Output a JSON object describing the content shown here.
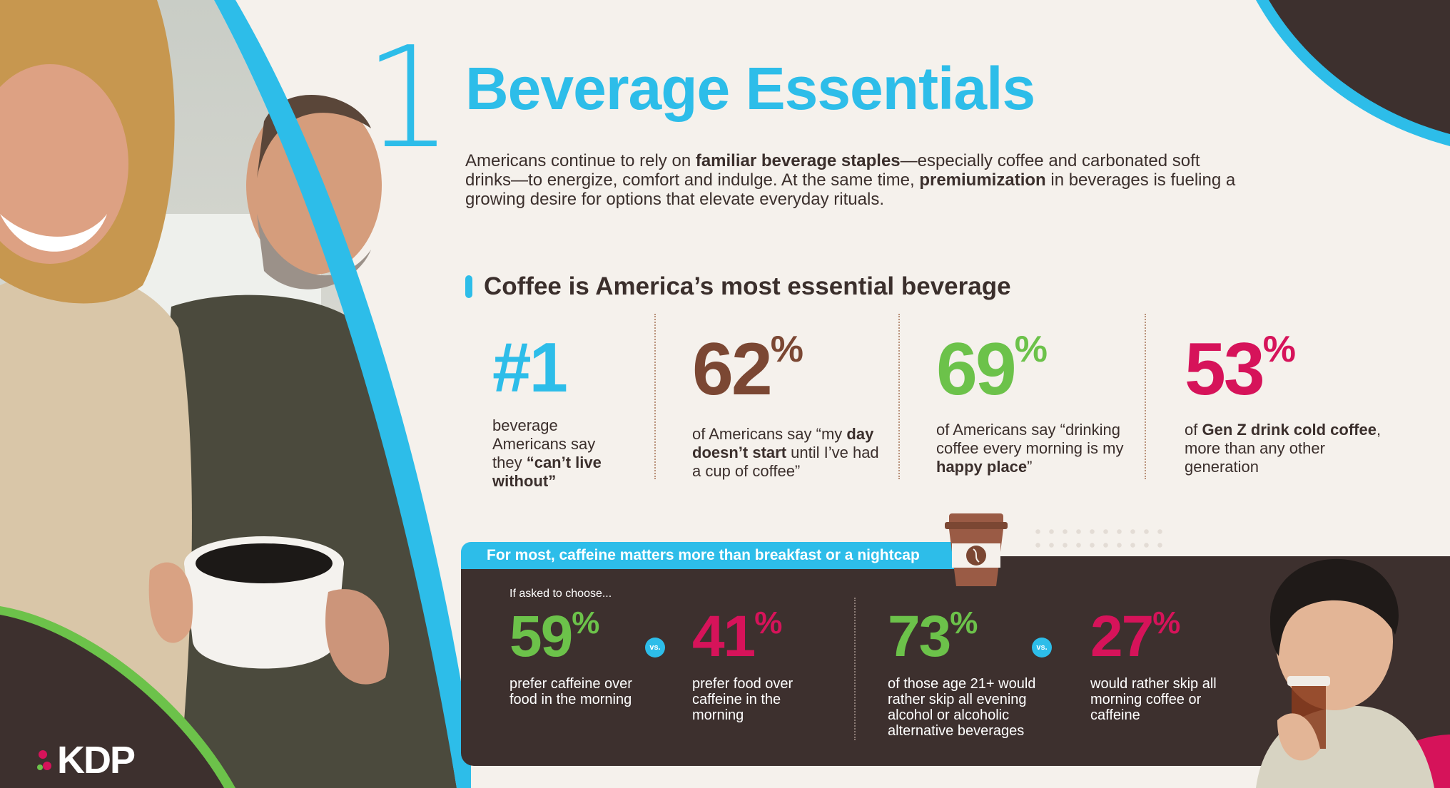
{
  "section_number": "1",
  "title": "Beverage Essentials",
  "intro": {
    "p1": "Americans continue to rely on ",
    "b1": "familiar beverage staples",
    "p2": "—especially coffee and carbonated soft drinks—to energize, comfort and indulge. At the same time, ",
    "b2": "premiumization",
    "p3": " in beverages is fueling a growing desire for options that elevate everyday rituals."
  },
  "subhead": "Coffee is America’s most essential beverage",
  "stats": [
    {
      "number": "#1",
      "unit": "",
      "color": "#2dbde9",
      "pre": "beverage Americans say they ",
      "bold": "“can’t live without”",
      "post": ""
    },
    {
      "number": "62",
      "unit": "%",
      "color": "#7b4733",
      "pre": "of Americans say “my ",
      "bold": "day doesn’t start",
      "post": " until I’ve had a cup of coffee”"
    },
    {
      "number": "69",
      "unit": "%",
      "color": "#6cc24a",
      "pre": "of Americans say “drinking coffee every morning is my ",
      "bold": "happy place",
      "post": "”"
    },
    {
      "number": "53",
      "unit": "%",
      "color": "#d6135a",
      "pre": "of ",
      "bold": "Gen Z drink cold coffee",
      "post": ", more than any other generation"
    }
  ],
  "panel": {
    "tab_label": "For most, caffeine matters more than breakfast or a nightcap",
    "ask": "If asked to choose...",
    "vs_label": "vs.",
    "items": [
      {
        "number": "59",
        "unit": "%",
        "color": "#6cc24a",
        "desc": "prefer caffeine over food in the morning"
      },
      {
        "number": "41",
        "unit": "%",
        "color": "#d6135a",
        "desc": "prefer food over caffeine in the morning"
      },
      {
        "number": "73",
        "unit": "%",
        "color": "#6cc24a",
        "desc": "of those age 21+ would rather skip all evening alcohol or alcoholic alternative beverages"
      },
      {
        "number": "27",
        "unit": "%",
        "color": "#d6135a",
        "desc": "would rather skip all morning coffee or caffeine"
      }
    ]
  },
  "logo": "KDP",
  "colors": {
    "accent": "#2dbde9",
    "dark": "#3d302e",
    "green": "#6cc24a",
    "magenta": "#d6135a",
    "brown": "#7b4733"
  }
}
